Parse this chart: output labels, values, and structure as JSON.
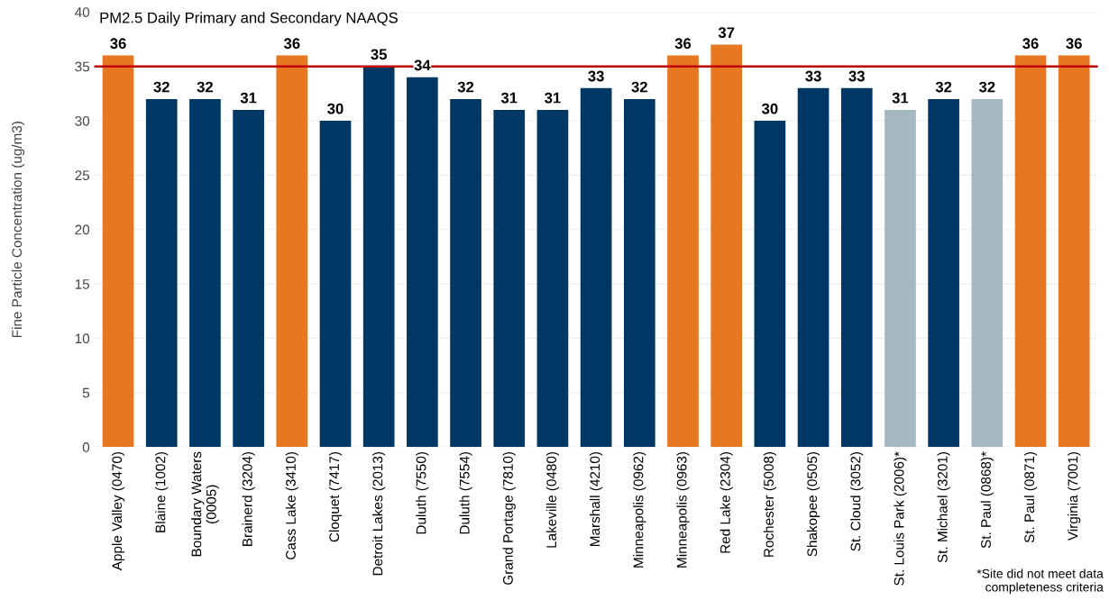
{
  "chart_data": {
    "type": "bar",
    "title": "PM2.5 Daily Primary and Secondary NAAQS",
    "ylabel": "Fine Particle Concentration (ug/m3)",
    "categories": [
      "Apple Valley (0470)",
      "Blaine (1002)",
      "Boundary Waters\n(0005)",
      "Brainerd (3204)",
      "Cass Lake (3410)",
      "Cloquet (7417)",
      "Detroit Lakes (2013)",
      "Duluth (7550)",
      "Duluth (7554)",
      "Grand Portage (7810)",
      "Lakeville (0480)",
      "Marshall (4210)",
      "Minneapolis (0962)",
      "Minneapolis (0963)",
      "Red Lake (2304)",
      "Rochester (5008)",
      "Shakopee (0505)",
      "St. Cloud (3052)",
      "St. Louis Park (2006)*",
      "St. Michael (3201)",
      "St. Paul (0868)*",
      "St. Paul (0871)",
      "Virginia (7001)"
    ],
    "values": [
      36,
      32,
      32,
      31,
      36,
      30,
      35,
      34,
      32,
      31,
      31,
      33,
      32,
      36,
      37,
      30,
      33,
      33,
      31,
      32,
      32,
      36,
      36
    ],
    "colors": [
      "#e87722",
      "#003865",
      "#003865",
      "#003865",
      "#e87722",
      "#003865",
      "#003865",
      "#003865",
      "#003865",
      "#003865",
      "#003865",
      "#003865",
      "#003865",
      "#e87722",
      "#e87722",
      "#003865",
      "#003865",
      "#003865",
      "#a5b8c0",
      "#003865",
      "#a5b8c0",
      "#e87722",
      "#e87722"
    ],
    "ylim": [
      0,
      40
    ],
    "yticks": [
      0,
      5,
      10,
      15,
      20,
      25,
      30,
      35,
      40
    ],
    "grid": "y",
    "data_labels": true,
    "ref_lines": [
      {
        "axis": "y",
        "value": 35,
        "color": "#c00000"
      }
    ],
    "annotations": [
      "*Site did not meet data\ncompleteness criteria"
    ]
  }
}
